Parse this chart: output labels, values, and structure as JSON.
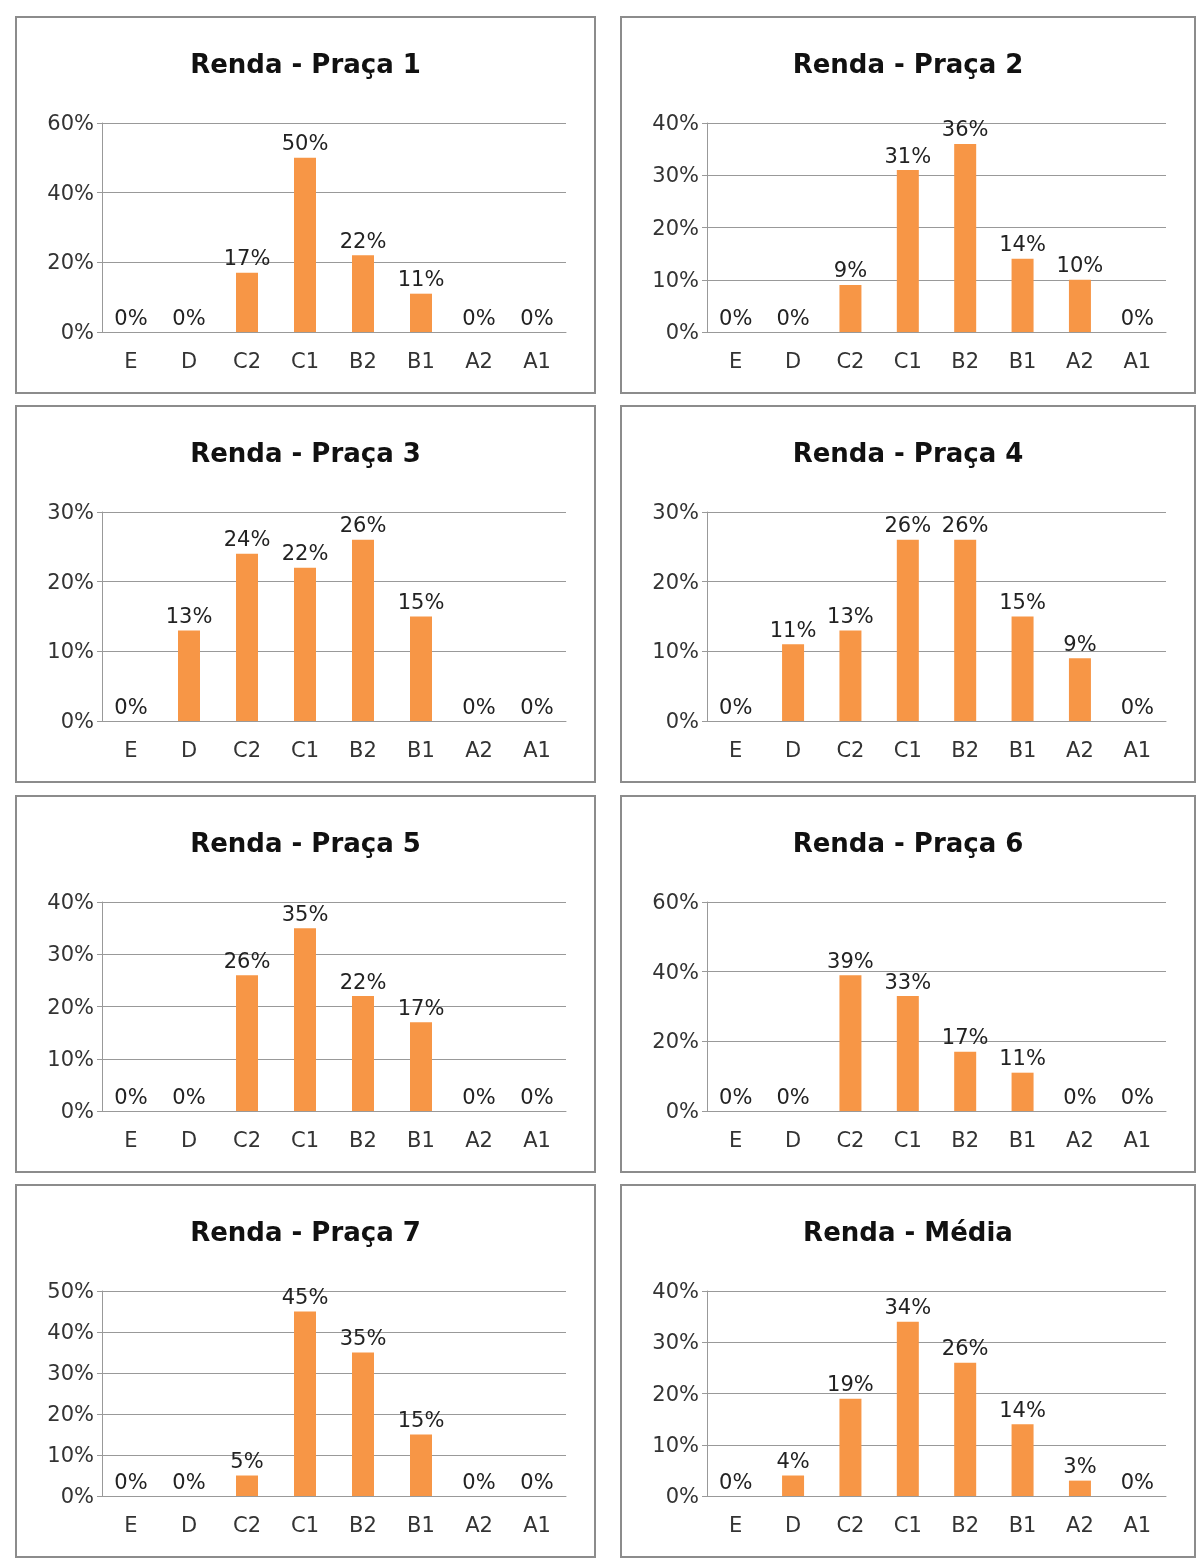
{
  "chart_data": [
    {
      "type": "bar",
      "title": "Renda - Praça 1",
      "categories": [
        "E",
        "D",
        "C2",
        "C1",
        "B2",
        "B1",
        "A2",
        "A1"
      ],
      "values": [
        0,
        0,
        17,
        50,
        22,
        11,
        0,
        0
      ],
      "value_labels": [
        "0%",
        "0%",
        "17%",
        "50%",
        "22%",
        "11%",
        "0%",
        "0%"
      ],
      "color": "#f79646",
      "ylim": [
        0,
        60
      ],
      "yticks": [
        {
          "value": 0,
          "label": "0%"
        },
        {
          "value": 20,
          "label": "20%"
        },
        {
          "value": 40,
          "label": "40%"
        },
        {
          "value": 60,
          "label": "60%"
        }
      ],
      "grid": "y"
    },
    {
      "type": "bar",
      "title": "Renda - Praça 2",
      "categories": [
        "E",
        "D",
        "C2",
        "C1",
        "B2",
        "B1",
        "A2",
        "A1"
      ],
      "values": [
        0,
        0,
        9,
        31,
        36,
        14,
        10,
        0
      ],
      "value_labels": [
        "0%",
        "0%",
        "9%",
        "31%",
        "36%",
        "14%",
        "10%",
        "0%"
      ],
      "color": "#f79646",
      "ylim": [
        0,
        40
      ],
      "yticks": [
        {
          "value": 0,
          "label": "0%"
        },
        {
          "value": 10,
          "label": "10%"
        },
        {
          "value": 20,
          "label": "20%"
        },
        {
          "value": 30,
          "label": "30%"
        },
        {
          "value": 40,
          "label": "40%"
        }
      ],
      "grid": "y"
    },
    {
      "type": "bar",
      "title": "Renda - Praça 3",
      "categories": [
        "E",
        "D",
        "C2",
        "C1",
        "B2",
        "B1",
        "A2",
        "A1"
      ],
      "values": [
        0,
        13,
        24,
        22,
        26,
        15,
        0,
        0
      ],
      "value_labels": [
        "0%",
        "13%",
        "24%",
        "22%",
        "26%",
        "15%",
        "0%",
        "0%"
      ],
      "color": "#f79646",
      "ylim": [
        0,
        30
      ],
      "yticks": [
        {
          "value": 0,
          "label": "0%"
        },
        {
          "value": 10,
          "label": "10%"
        },
        {
          "value": 20,
          "label": "20%"
        },
        {
          "value": 30,
          "label": "30%"
        }
      ],
      "grid": "y"
    },
    {
      "type": "bar",
      "title": "Renda - Praça 4",
      "categories": [
        "E",
        "D",
        "C2",
        "C1",
        "B2",
        "B1",
        "A2",
        "A1"
      ],
      "values": [
        0,
        11,
        13,
        26,
        26,
        15,
        9,
        0
      ],
      "value_labels": [
        "0%",
        "11%",
        "13%",
        "26%",
        "26%",
        "15%",
        "9%",
        "0%"
      ],
      "color": "#f79646",
      "ylim": [
        0,
        30
      ],
      "yticks": [
        {
          "value": 0,
          "label": "0%"
        },
        {
          "value": 10,
          "label": "10%"
        },
        {
          "value": 20,
          "label": "20%"
        },
        {
          "value": 30,
          "label": "30%"
        }
      ],
      "grid": "y"
    },
    {
      "type": "bar",
      "title": "Renda - Praça 5",
      "categories": [
        "E",
        "D",
        "C2",
        "C1",
        "B2",
        "B1",
        "A2",
        "A1"
      ],
      "values": [
        0,
        0,
        26,
        35,
        22,
        17,
        0,
        0
      ],
      "value_labels": [
        "0%",
        "0%",
        "26%",
        "35%",
        "22%",
        "17%",
        "0%",
        "0%"
      ],
      "color": "#f79646",
      "ylim": [
        0,
        40
      ],
      "yticks": [
        {
          "value": 0,
          "label": "0%"
        },
        {
          "value": 10,
          "label": "10%"
        },
        {
          "value": 20,
          "label": "20%"
        },
        {
          "value": 30,
          "label": "30%"
        },
        {
          "value": 40,
          "label": "40%"
        }
      ],
      "grid": "y"
    },
    {
      "type": "bar",
      "title": "Renda - Praça 6",
      "categories": [
        "E",
        "D",
        "C2",
        "C1",
        "B2",
        "B1",
        "A2",
        "A1"
      ],
      "values": [
        0,
        0,
        39,
        33,
        17,
        11,
        0,
        0
      ],
      "value_labels": [
        "0%",
        "0%",
        "39%",
        "33%",
        "17%",
        "11%",
        "0%",
        "0%"
      ],
      "color": "#f79646",
      "ylim": [
        0,
        60
      ],
      "yticks": [
        {
          "value": 0,
          "label": "0%"
        },
        {
          "value": 20,
          "label": "20%"
        },
        {
          "value": 40,
          "label": "40%"
        },
        {
          "value": 60,
          "label": "60%"
        }
      ],
      "grid": "y"
    },
    {
      "type": "bar",
      "title": "Renda - Praça 7",
      "categories": [
        "E",
        "D",
        "C2",
        "C1",
        "B2",
        "B1",
        "A2",
        "A1"
      ],
      "values": [
        0,
        0,
        5,
        45,
        35,
        15,
        0,
        0
      ],
      "value_labels": [
        "0%",
        "0%",
        "5%",
        "45%",
        "35%",
        "15%",
        "0%",
        "0%"
      ],
      "color": "#f79646",
      "ylim": [
        0,
        50
      ],
      "yticks": [
        {
          "value": 0,
          "label": "0%"
        },
        {
          "value": 10,
          "label": "10%"
        },
        {
          "value": 20,
          "label": "20%"
        },
        {
          "value": 30,
          "label": "30%"
        },
        {
          "value": 40,
          "label": "40%"
        },
        {
          "value": 50,
          "label": "50%"
        }
      ],
      "grid": "y"
    },
    {
      "type": "bar",
      "title": "Renda - Média",
      "categories": [
        "E",
        "D",
        "C2",
        "C1",
        "B2",
        "B1",
        "A2",
        "A1"
      ],
      "values": [
        0,
        4,
        19,
        34,
        26,
        14,
        3,
        0
      ],
      "value_labels": [
        "0%",
        "4%",
        "19%",
        "34%",
        "26%",
        "14%",
        "3%",
        "0%"
      ],
      "color": "#f79646",
      "ylim": [
        0,
        40
      ],
      "yticks": [
        {
          "value": 0,
          "label": "0%"
        },
        {
          "value": 10,
          "label": "10%"
        },
        {
          "value": 20,
          "label": "20%"
        },
        {
          "value": 30,
          "label": "30%"
        },
        {
          "value": 40,
          "label": "40%"
        }
      ],
      "grid": "y"
    }
  ]
}
